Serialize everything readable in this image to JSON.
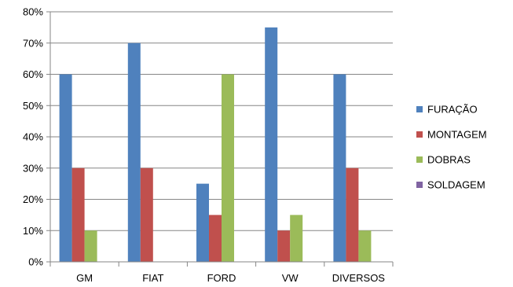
{
  "chart_data": {
    "type": "bar",
    "categories": [
      "GM",
      "FIAT",
      "FORD",
      "VW",
      "DIVERSOS"
    ],
    "series": [
      {
        "name": "FURAÇÃO",
        "color": "#4F81BD",
        "values": [
          60,
          70,
          25,
          75,
          60
        ]
      },
      {
        "name": "MONTAGEM",
        "color": "#C0504D",
        "values": [
          30,
          30,
          15,
          10,
          30
        ]
      },
      {
        "name": "DOBRAS",
        "color": "#9BBB59",
        "values": [
          10,
          0,
          60,
          15,
          10
        ]
      },
      {
        "name": "SOLDAGEM",
        "color": "#8064A2",
        "values": [
          0,
          0,
          0,
          0,
          0
        ]
      }
    ],
    "y_ticks": [
      "0%",
      "10%",
      "20%",
      "30%",
      "40%",
      "50%",
      "60%",
      "70%",
      "80%"
    ],
    "ylim": [
      0,
      80
    ],
    "y_unit": "%",
    "grid": true,
    "legend_position": "right"
  }
}
